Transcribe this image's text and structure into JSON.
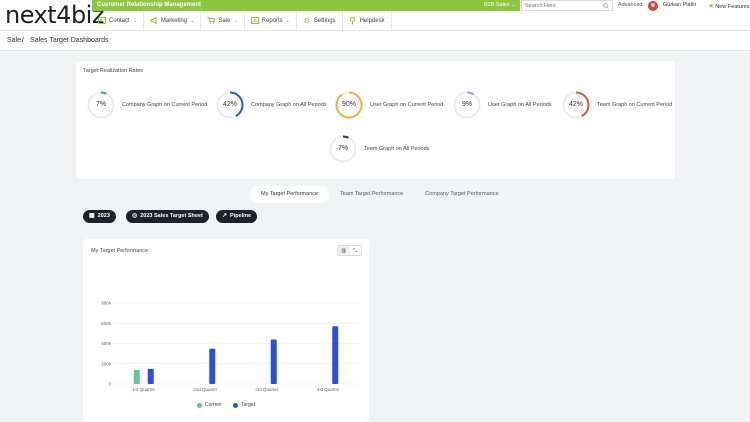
{
  "app": {
    "logo": "next4biz",
    "module_title": "Customer Relationship Management",
    "workspace": "B2B Sales",
    "search_placeholder": "Search Here",
    "advanced_label": "Advanced",
    "user_name": "Gürkan Platin",
    "new_features_label": "New Features"
  },
  "nav": [
    {
      "label": "Contact",
      "icon": "contact-icon",
      "dropdown": true
    },
    {
      "label": "Marketing",
      "icon": "megaphone-icon",
      "dropdown": true
    },
    {
      "label": "Sale",
      "icon": "cart-icon",
      "dropdown": true
    },
    {
      "label": "Reports",
      "icon": "reports-icon",
      "dropdown": true
    },
    {
      "label": "Settings",
      "icon": "gear-icon",
      "dropdown": false
    },
    {
      "label": "Helpdesk",
      "icon": "helpdesk-icon",
      "dropdown": false
    }
  ],
  "breadcrumb": {
    "root": "Sale",
    "sep": "/",
    "current": "Sales Target Dashboards"
  },
  "rates": {
    "title": "Target Realization Rates",
    "gauges": [
      {
        "pct": "7%",
        "value": 7,
        "label": "Company Graph on Current Period",
        "color": "#2aa876"
      },
      {
        "pct": "42%",
        "value": 42,
        "label": "Company Graph on All Periods",
        "color": "#2c55d8"
      },
      {
        "pct": "90%",
        "value": 90,
        "label": "User Graph on Current Period",
        "color": "#f2b33b"
      },
      {
        "pct": "9%",
        "value": 9,
        "label": "User Graph on All Periods",
        "color": "#8fa0e8"
      },
      {
        "pct": "42%",
        "value": 42,
        "label": "Team Graph on Current Period",
        "color": "#e0524d"
      },
      {
        "pct": "7%",
        "value": 7,
        "label": "Team Graph on All Periods",
        "color": "#1f3b2c"
      }
    ]
  },
  "tabs": [
    {
      "label": "My Target Performance",
      "active": true
    },
    {
      "label": "Team Target Performance",
      "active": false
    },
    {
      "label": "Company Target Performance",
      "active": false
    }
  ],
  "pills": {
    "year": "2023",
    "sheet": "2023 Sales Target Sheet",
    "pipeline": "Pipeline"
  },
  "chart_card": {
    "title": "My Target Performance"
  },
  "chart_data": {
    "type": "bar",
    "title": "My Target Performance",
    "categories": [
      "1st Quarter",
      "2nd Quarter",
      "3rd Quarter",
      "4st Quarter"
    ],
    "ytick_labels": [
      "0",
      "200k",
      "400k",
      "600k",
      "800k"
    ],
    "ylim": [
      0,
      800000
    ],
    "grid": true,
    "legend_position": "bottom",
    "series": [
      {
        "name": "Current",
        "color": "#5ec79a",
        "values": [
          140000,
          0,
          0,
          0
        ]
      },
      {
        "name": "Target",
        "color": "#2b4fdc",
        "values": [
          150000,
          350000,
          440000,
          570000
        ]
      }
    ]
  }
}
